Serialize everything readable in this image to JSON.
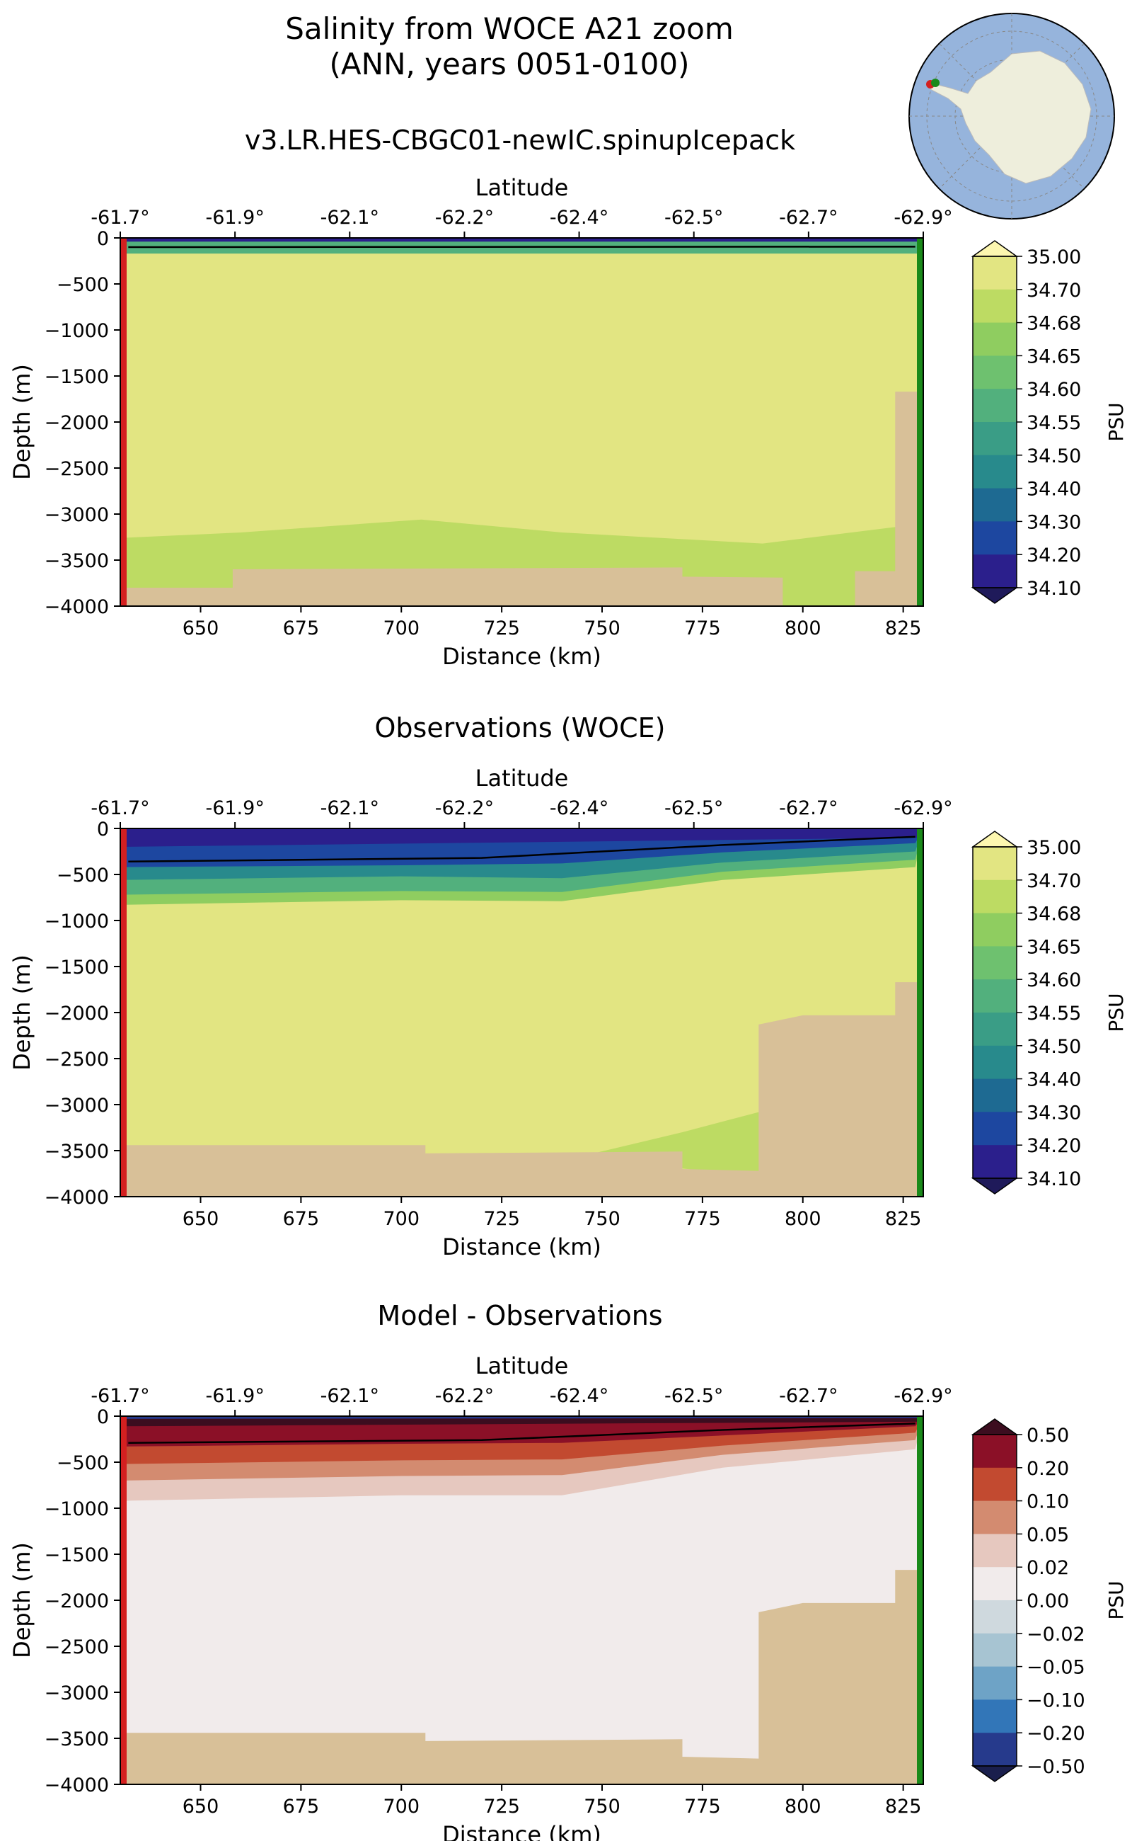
{
  "figure": {
    "title_line1": "Salinity from WOCE A21 zoom",
    "title_line2": "(ANN, years 0051-0100)"
  },
  "chart_data": [
    {
      "type": "heatmap",
      "title": "v3.LR.HES-CBGC01-newIC.spinupIcepack",
      "xlabel": "Distance (km)",
      "ylabel": "Depth (m)",
      "top_axis_label": "Latitude",
      "top_ticks": [
        "-61.7°",
        "-61.9°",
        "-62.1°",
        "-62.2°",
        "-62.4°",
        "-62.5°",
        "-62.7°",
        "-62.9°"
      ],
      "xlim": [
        630,
        830
      ],
      "ylim": [
        -4000,
        0
      ],
      "xticks": [
        650,
        675,
        700,
        725,
        750,
        775,
        800,
        825
      ],
      "yticks": [
        0,
        -500,
        -1000,
        -1500,
        -2000,
        -2500,
        -3000,
        -3500,
        -4000
      ],
      "colorbar_label": "PSU",
      "colorbar_levels": [
        "34.10",
        "34.20",
        "34.30",
        "34.40",
        "34.50",
        "34.55",
        "34.60",
        "34.65",
        "34.68",
        "34.70",
        "35.00"
      ],
      "colorbar_colors": [
        "#2b1f8c",
        "#1d47a0",
        "#1e6a92",
        "#288a8c",
        "#3a9d86",
        "#52b07d",
        "#6ec16f",
        "#8fcd60",
        "#bddb63",
        "#e2e582"
      ],
      "colorbar_extend": "both",
      "layers": [
        {
          "color": "#e2e582",
          "from_depth": [
            -80,
            -80
          ],
          "to_depth": [
            -4000,
            -4000
          ]
        },
        {
          "color": "#bddb63",
          "depth_top": [
            [
              630,
              -3260
            ],
            [
              660,
              -3200
            ],
            [
              705,
              -3060
            ],
            [
              740,
              -3200
            ],
            [
              790,
              -3320
            ],
            [
              825,
              -3130
            ]
          ]
        },
        {
          "color": "#52b07d",
          "depth_top": [
            [
              630,
              -170
            ],
            [
              830,
              -170
            ]
          ]
        },
        {
          "color": "#2b1f8c",
          "depth_top": [
            [
              630,
              -40
            ],
            [
              830,
              -40
            ]
          ]
        }
      ],
      "black_contour": [
        [
          632,
          -100
        ],
        [
          828,
          -95
        ]
      ],
      "bathymetry": [
        [
          630,
          -3800
        ],
        [
          658,
          -3800
        ],
        [
          658,
          -3600
        ],
        [
          770,
          -3580
        ],
        [
          770,
          -3680
        ],
        [
          795,
          -3690
        ],
        [
          795,
          -4000
        ],
        [
          813,
          -4000
        ],
        [
          813,
          -3620
        ],
        [
          823,
          -3620
        ],
        [
          823,
          -1670
        ],
        [
          830,
          -1670
        ]
      ],
      "bathymetry_color": "#d8c098"
    },
    {
      "type": "heatmap",
      "title": "Observations (WOCE)",
      "xlabel": "Distance (km)",
      "ylabel": "Depth (m)",
      "top_axis_label": "Latitude",
      "top_ticks": [
        "-61.7°",
        "-61.9°",
        "-62.1°",
        "-62.2°",
        "-62.4°",
        "-62.5°",
        "-62.7°",
        "-62.9°"
      ],
      "xlim": [
        630,
        830
      ],
      "ylim": [
        -4000,
        0
      ],
      "xticks": [
        650,
        675,
        700,
        725,
        750,
        775,
        800,
        825
      ],
      "yticks": [
        0,
        -500,
        -1000,
        -1500,
        -2000,
        -2500,
        -3000,
        -3500,
        -4000
      ],
      "colorbar_label": "PSU",
      "colorbar_levels": [
        "34.10",
        "34.20",
        "34.30",
        "34.40",
        "34.50",
        "34.55",
        "34.60",
        "34.65",
        "34.68",
        "34.70",
        "35.00"
      ],
      "colorbar_colors": [
        "#2b1f8c",
        "#1d47a0",
        "#1e6a92",
        "#288a8c",
        "#3a9d86",
        "#52b07d",
        "#6ec16f",
        "#8fcd60",
        "#bddb63",
        "#e2e582"
      ],
      "colorbar_extend": "both",
      "layers": [
        {
          "color": "#e2e582",
          "from_depth": [
            -80,
            -80
          ],
          "to_depth": [
            -4000,
            -4000
          ]
        },
        {
          "color": "#bddb63",
          "depth_top": [
            [
              745,
              -3560
            ],
            [
              770,
              -3300
            ],
            [
              790,
              -3070
            ],
            [
              790,
              -3800
            ]
          ]
        },
        {
          "color": "#8fcd60",
          "depth_top": [
            [
              630,
              -830
            ],
            [
              700,
              -780
            ],
            [
              740,
              -790
            ],
            [
              780,
              -560
            ],
            [
              828,
              -420
            ]
          ]
        },
        {
          "color": "#52b07d",
          "depth_top": [
            [
              630,
              -720
            ],
            [
              700,
              -680
            ],
            [
              740,
              -690
            ],
            [
              780,
              -470
            ],
            [
              828,
              -340
            ]
          ]
        },
        {
          "color": "#288a8c",
          "depth_top": [
            [
              630,
              -560
            ],
            [
              700,
              -520
            ],
            [
              740,
              -540
            ],
            [
              780,
              -370
            ],
            [
              828,
              -250
            ]
          ]
        },
        {
          "color": "#1d47a0",
          "depth_top": [
            [
              630,
              -420
            ],
            [
              700,
              -400
            ],
            [
              740,
              -380
            ],
            [
              780,
              -260
            ],
            [
              828,
              -160
            ]
          ]
        },
        {
          "color": "#2b1f8c",
          "depth_top": [
            [
              630,
              -200
            ],
            [
              830,
              -100
            ]
          ]
        }
      ],
      "black_contour": [
        [
          632,
          -360
        ],
        [
          720,
          -320
        ],
        [
          780,
          -180
        ],
        [
          828,
          -90
        ]
      ],
      "bathymetry": [
        [
          630,
          -3440
        ],
        [
          706,
          -3440
        ],
        [
          706,
          -3530
        ],
        [
          770,
          -3510
        ],
        [
          770,
          -3700
        ],
        [
          789,
          -3720
        ],
        [
          789,
          -2130
        ],
        [
          800,
          -2030
        ],
        [
          823,
          -2030
        ],
        [
          823,
          -1670
        ],
        [
          830,
          -1670
        ]
      ],
      "bathymetry_color": "#d8c098"
    },
    {
      "type": "heatmap",
      "title": "Model - Observations",
      "xlabel": "Distance (km)",
      "ylabel": "Depth (m)",
      "top_axis_label": "Latitude",
      "top_ticks": [
        "-61.7°",
        "-61.9°",
        "-62.1°",
        "-62.2°",
        "-62.4°",
        "-62.5°",
        "-62.7°",
        "-62.9°"
      ],
      "xlim": [
        630,
        830
      ],
      "ylim": [
        -4000,
        0
      ],
      "xticks": [
        650,
        675,
        700,
        725,
        750,
        775,
        800,
        825
      ],
      "yticks": [
        0,
        -500,
        -1000,
        -1500,
        -2000,
        -2500,
        -3000,
        -3500,
        -4000
      ],
      "colorbar_label": "PSU",
      "colorbar_levels": [
        "−0.50",
        "−0.20",
        "−0.10",
        "−0.05",
        "−0.02",
        "0.00",
        "0.02",
        "0.05",
        "0.10",
        "0.20",
        "0.50"
      ],
      "colorbar_colors": [
        "#263a8c",
        "#3276b8",
        "#6ea3c6",
        "#a7c4d2",
        "#cfd9de",
        "#f1ebeb",
        "#e6c8bf",
        "#d38b70",
        "#c24a30",
        "#8b1027"
      ],
      "colorbar_extend": "both",
      "layers": [
        {
          "color": "#f1ebeb",
          "from_depth": [
            -80,
            -80
          ],
          "to_depth": [
            -4000,
            -4000
          ]
        },
        {
          "color": "#e6c8bf",
          "depth_top": [
            [
              630,
              -920
            ],
            [
              700,
              -860
            ],
            [
              740,
              -860
            ],
            [
              780,
              -560
            ],
            [
              828,
              -360
            ]
          ]
        },
        {
          "color": "#d38b70",
          "depth_top": [
            [
              630,
              -700
            ],
            [
              700,
              -650
            ],
            [
              740,
              -640
            ],
            [
              780,
              -420
            ],
            [
              828,
              -260
            ]
          ]
        },
        {
          "color": "#c24a30",
          "depth_top": [
            [
              630,
              -520
            ],
            [
              700,
              -480
            ],
            [
              740,
              -470
            ],
            [
              780,
              -320
            ],
            [
              828,
              -180
            ]
          ]
        },
        {
          "color": "#8b1027",
          "depth_top": [
            [
              630,
              -330
            ],
            [
              700,
              -300
            ],
            [
              740,
              -290
            ],
            [
              780,
              -210
            ],
            [
              828,
              -110
            ]
          ]
        },
        {
          "color": "#3c0d1f",
          "depth_top": [
            [
              630,
              -110
            ],
            [
              830,
              -60
            ]
          ]
        },
        {
          "color": "#263a8c",
          "depth_top": [
            [
              630,
              -30
            ],
            [
              830,
              -20
            ]
          ]
        }
      ],
      "black_contour": [
        [
          632,
          -290
        ],
        [
          720,
          -260
        ],
        [
          780,
          -150
        ],
        [
          828,
          -80
        ]
      ],
      "bathymetry": [
        [
          630,
          -3440
        ],
        [
          706,
          -3440
        ],
        [
          706,
          -3530
        ],
        [
          770,
          -3510
        ],
        [
          770,
          -3700
        ],
        [
          789,
          -3720
        ],
        [
          789,
          -2130
        ],
        [
          800,
          -2030
        ],
        [
          823,
          -2030
        ],
        [
          823,
          -1670
        ],
        [
          830,
          -1670
        ]
      ],
      "bathymetry_color": "#d8c098"
    }
  ]
}
